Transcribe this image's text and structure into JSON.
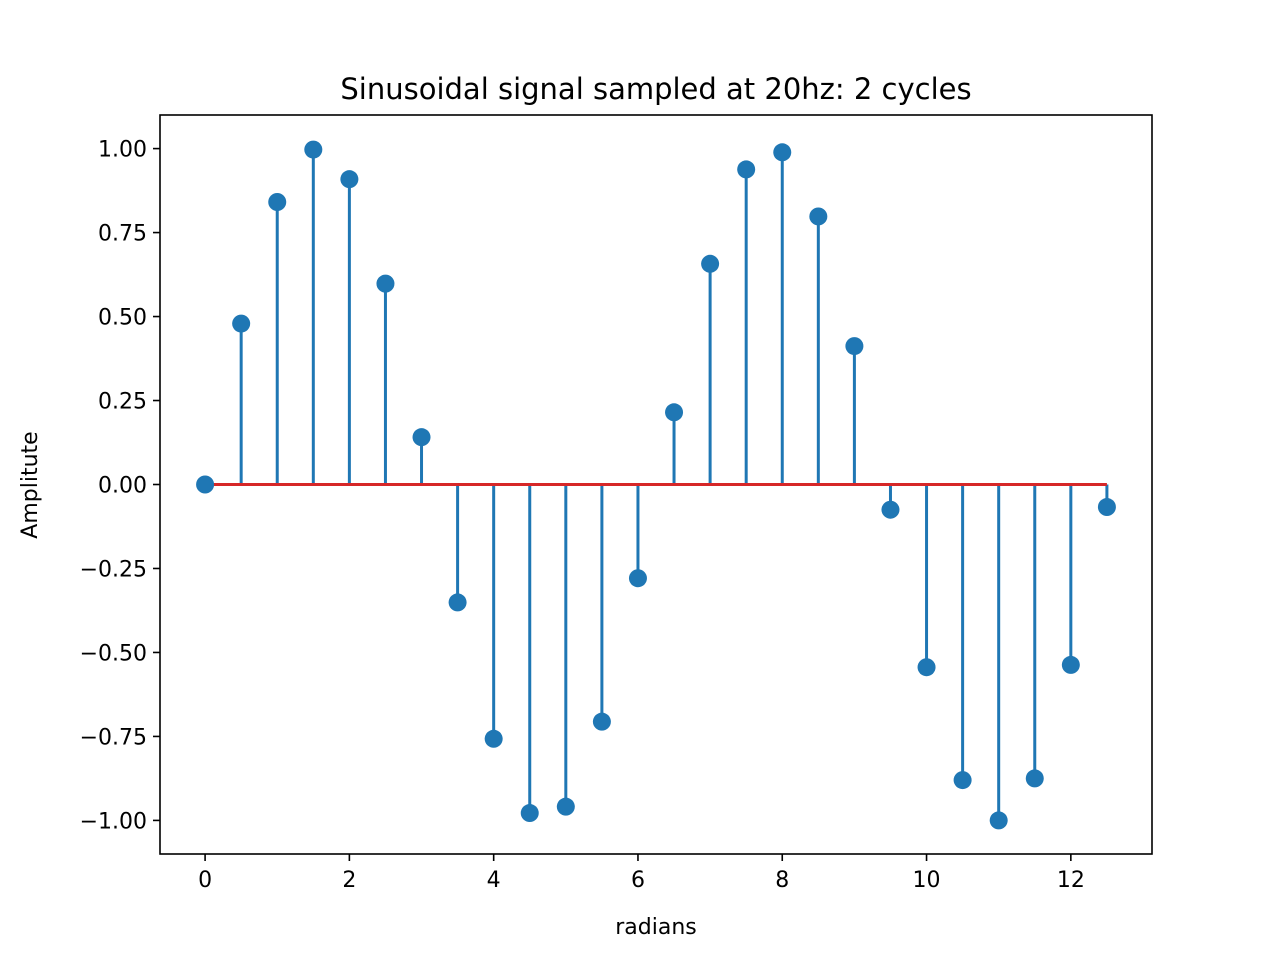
{
  "chart_data": {
    "type": "stem",
    "title": "Sinusoidal signal sampled at 20hz: 2 cycles",
    "xlabel": "radians",
    "ylabel": "Amplitute",
    "xlim": [
      -0.625,
      13.125
    ],
    "ylim": [
      -1.1,
      1.1
    ],
    "x_ticks": [
      0,
      2,
      4,
      6,
      8,
      10,
      12
    ],
    "x_tick_labels": [
      "0",
      "2",
      "4",
      "6",
      "8",
      "10",
      "12"
    ],
    "y_ticks": [
      1.0,
      0.75,
      0.5,
      0.25,
      0.0,
      -0.25,
      -0.5,
      -0.75,
      -1.0
    ],
    "y_tick_labels": [
      "1.00",
      "0.75",
      "0.50",
      "0.25",
      "0.00",
      "−0.25",
      "−0.50",
      "−0.75",
      "−1.00"
    ],
    "grid": false,
    "baseline": 0,
    "colors": {
      "stem": "#1f77b4",
      "marker": "#1f77b4",
      "baseline": "#d62728"
    },
    "x": [
      0,
      0.5,
      1.0,
      1.5,
      2.0,
      2.5,
      3.0,
      3.5,
      4.0,
      4.5,
      5.0,
      5.5,
      6.0,
      6.5,
      7.0,
      7.5,
      8.0,
      8.5,
      9.0,
      9.5,
      10.0,
      10.5,
      11.0,
      11.5,
      12.0,
      12.5
    ],
    "values": [
      0.0,
      0.479,
      0.841,
      0.997,
      0.909,
      0.598,
      0.141,
      -0.351,
      -0.757,
      -0.978,
      -0.959,
      -0.706,
      -0.279,
      0.215,
      0.657,
      0.938,
      0.989,
      0.798,
      0.412,
      -0.075,
      -0.544,
      -0.88,
      -1.0,
      -0.875,
      -0.537,
      -0.067
    ]
  }
}
